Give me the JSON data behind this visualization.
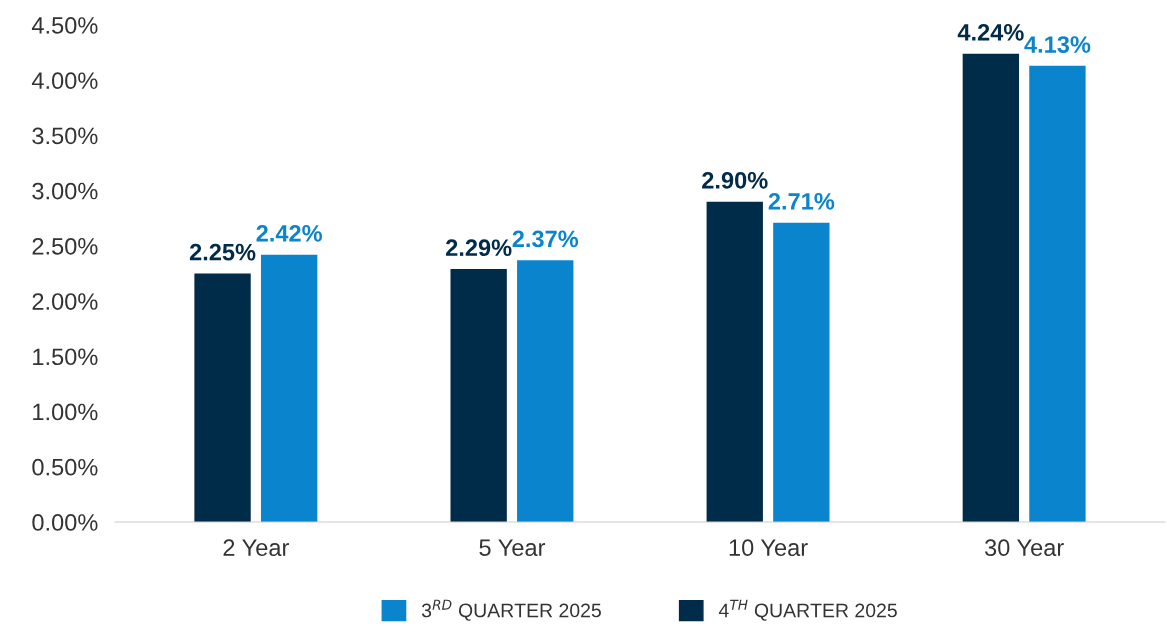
{
  "chart_data": {
    "type": "bar",
    "categories": [
      "2 Year",
      "5 Year",
      "10 Year",
      "30 Year"
    ],
    "series": [
      {
        "name": "4$^{TH}$ QUARTER 2025",
        "color": "#002b49",
        "values": [
          2.25,
          2.29,
          2.9,
          4.24
        ],
        "value_labels": [
          "2.25%",
          "2.29%",
          "2.90%",
          "4.24%"
        ]
      },
      {
        "name": "3$^{RD}$ QUARTER 2025",
        "color": "#0a84cc",
        "values": [
          2.42,
          2.37,
          2.71,
          4.13
        ],
        "value_labels": [
          "2.42%",
          "2.37%",
          "2.71%",
          "4.13%"
        ]
      }
    ],
    "ylim": [
      0,
      4.5
    ],
    "yticks": [
      {
        "value": 0,
        "label": "0.00%"
      },
      {
        "value": 0.5,
        "label": "0.50%"
      },
      {
        "value": 1,
        "label": "1.00%"
      },
      {
        "value": 1.5,
        "label": "1.50%"
      },
      {
        "value": 2,
        "label": "2.00%"
      },
      {
        "value": 2.5,
        "label": "2.50%"
      },
      {
        "value": 3,
        "label": "3.00%"
      },
      {
        "value": 3.5,
        "label": "3.50%"
      },
      {
        "value": 4,
        "label": "4.00%"
      },
      {
        "value": 4.5,
        "label": "4.50%"
      }
    ],
    "grid": false,
    "legend": "bottom"
  }
}
